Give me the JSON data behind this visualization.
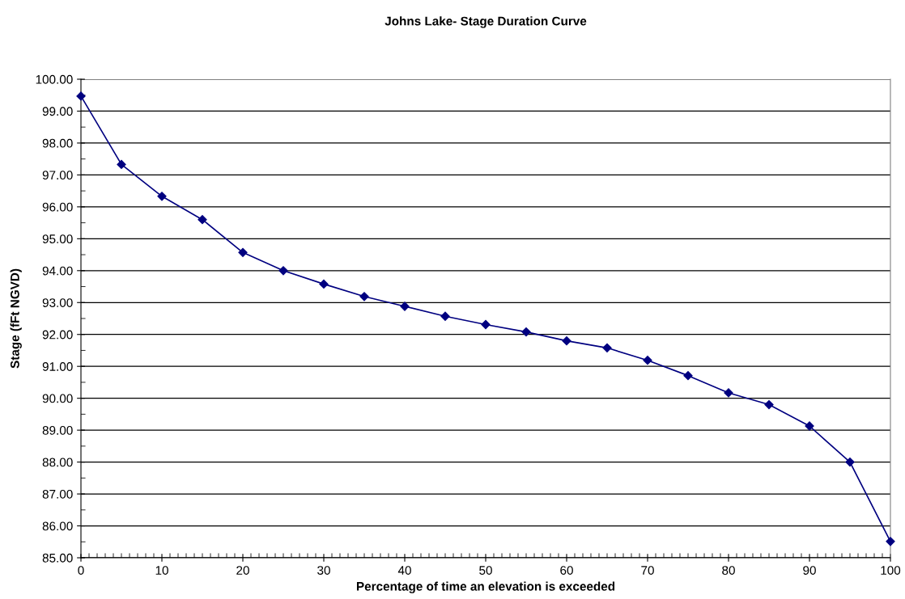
{
  "chart_data": {
    "type": "line",
    "title": "Johns Lake- Stage Duration Curve",
    "xlabel": "Percentage of time an elevation is exceeded",
    "ylabel": "Stage (fFt NGVD)",
    "x": [
      0,
      5,
      10,
      15,
      20,
      25,
      30,
      35,
      40,
      45,
      50,
      55,
      60,
      65,
      70,
      75,
      80,
      85,
      90,
      95,
      100
    ],
    "series": [
      {
        "color": "#000080",
        "values": [
          99.47,
          97.33,
          96.33,
          95.6,
          94.57,
          94.0,
          93.58,
          93.19,
          92.88,
          92.57,
          92.31,
          92.08,
          91.8,
          91.58,
          91.19,
          90.71,
          90.17,
          89.8,
          89.13,
          88.0,
          85.51
        ]
      }
    ],
    "xlim": [
      0,
      100
    ],
    "xticks": [
      0,
      10,
      20,
      30,
      40,
      50,
      60,
      70,
      80,
      90,
      100
    ],
    "ylim": [
      85,
      100
    ],
    "yticks": [
      {
        "value": 85,
        "label": "85.00"
      },
      {
        "value": 86,
        "label": "86.00"
      },
      {
        "value": 87,
        "label": "87.00"
      },
      {
        "value": 88,
        "label": "88.00"
      },
      {
        "value": 89,
        "label": "89.00"
      },
      {
        "value": 90,
        "label": "90.00"
      },
      {
        "value": 91,
        "label": "91.00"
      },
      {
        "value": 92,
        "label": "92.00"
      },
      {
        "value": 93,
        "label": "93.00"
      },
      {
        "value": 94,
        "label": "94.00"
      },
      {
        "value": 95,
        "label": "95.00"
      },
      {
        "value": 96,
        "label": "96.00"
      },
      {
        "value": 97,
        "label": "97.00"
      },
      {
        "value": 98,
        "label": "98.00"
      },
      {
        "value": 99,
        "label": "99.00"
      },
      {
        "value": 100,
        "label": "100.00"
      }
    ],
    "grid": "y",
    "marker": "diamond",
    "line_style": "solid",
    "legend": false
  }
}
